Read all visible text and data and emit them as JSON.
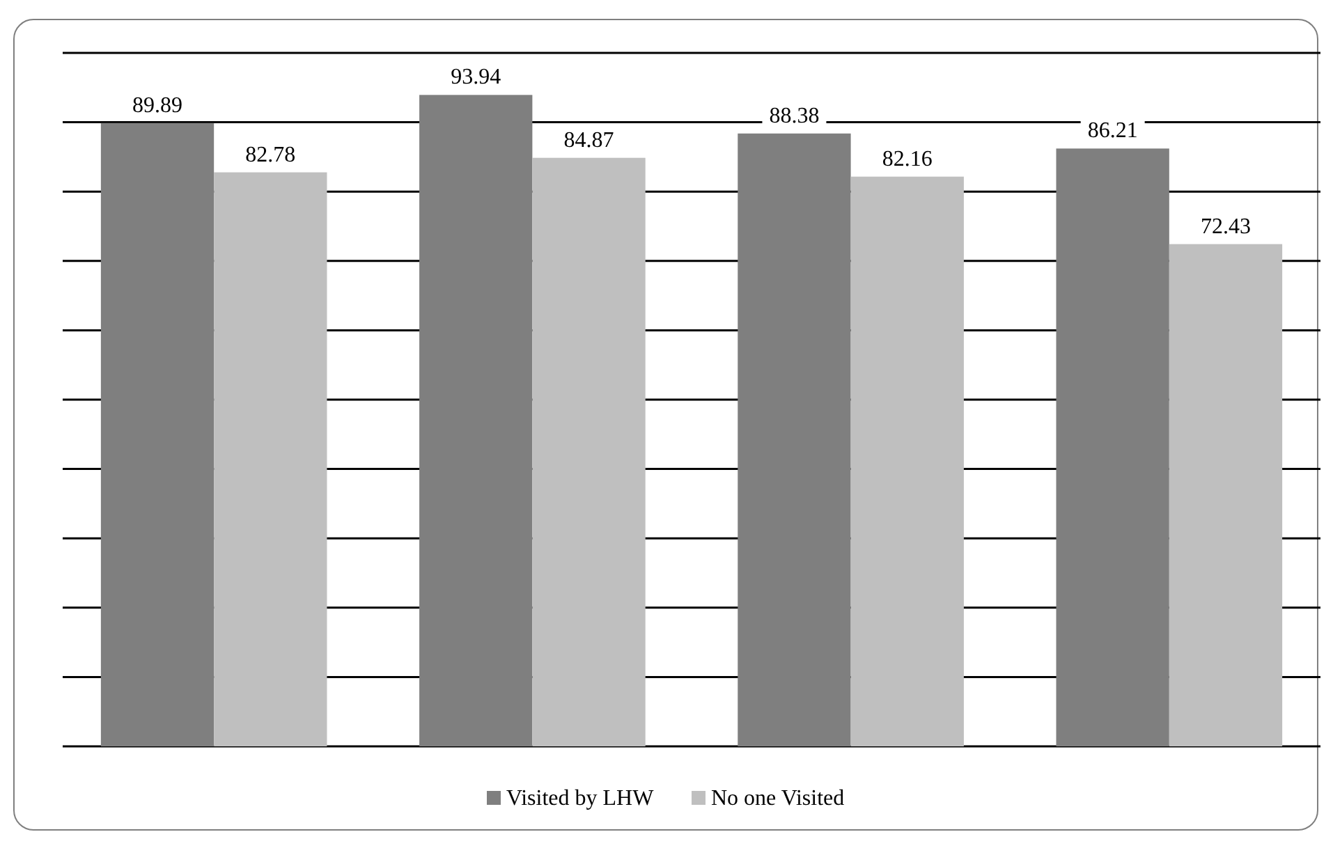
{
  "chart_data": {
    "type": "bar",
    "categories": [
      null,
      null,
      null,
      null
    ],
    "series": [
      {
        "name": "Visited by LHW",
        "color": "#7f7f7f",
        "values": [
          89.89,
          93.94,
          88.38,
          86.21
        ]
      },
      {
        "name": "No one Visited",
        "color": "#bfbfbf",
        "values": [
          82.78,
          84.87,
          82.16,
          72.43
        ]
      }
    ],
    "ylim": [
      0,
      100
    ],
    "yticks": [
      {
        "value": 0,
        "label": null
      },
      {
        "value": 10,
        "label": null
      },
      {
        "value": 20,
        "label": null
      },
      {
        "value": 30,
        "label": null
      },
      {
        "value": 40,
        "label": null
      },
      {
        "value": 50,
        "label": null
      },
      {
        "value": 60,
        "label": null
      },
      {
        "value": 70,
        "label": null
      },
      {
        "value": 80,
        "label": null
      },
      {
        "value": 90,
        "label": null
      },
      {
        "value": 100,
        "label": null
      }
    ],
    "grid": "y",
    "legend": "bottom",
    "data_labels": true
  }
}
